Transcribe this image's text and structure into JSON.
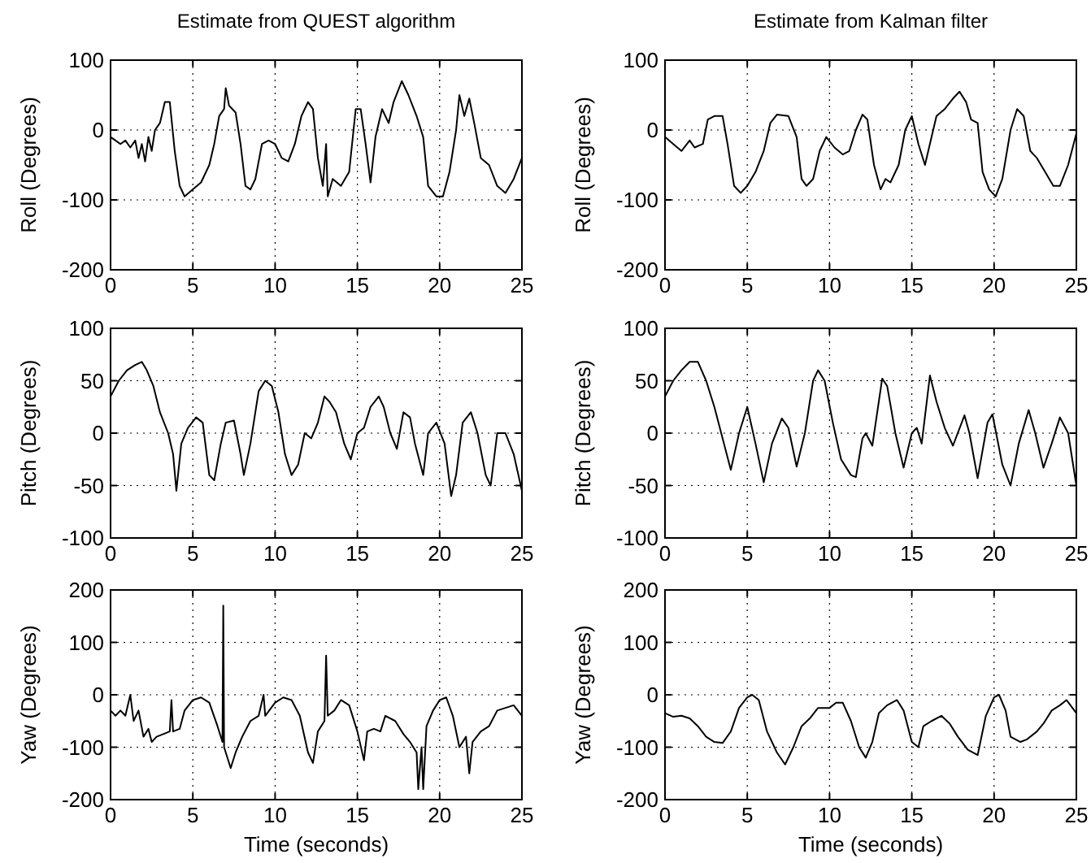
{
  "chart_data": [
    {
      "type": "line",
      "title": "Estimate from QUEST algorithm",
      "ylabel": "Roll (Degrees)",
      "color": "#000000",
      "grid": true,
      "xlim": [
        0,
        25
      ],
      "xticks": [
        0,
        5,
        10,
        15,
        20,
        25
      ],
      "ylim": [
        -200,
        100
      ],
      "yticks": [
        -200,
        -100,
        0,
        100
      ],
      "x": [
        0,
        0.3,
        0.6,
        0.9,
        1.2,
        1.5,
        1.7,
        1.9,
        2.1,
        2.3,
        2.5,
        2.7,
        3.0,
        3.3,
        3.6,
        3.9,
        4.2,
        4.5,
        5,
        5.5,
        6,
        6.3,
        6.6,
        6.9,
        7,
        7.2,
        7.6,
        7.9,
        8.2,
        8.5,
        8.8,
        9.2,
        9.6,
        10,
        10.4,
        10.8,
        11.2,
        11.6,
        12,
        12.3,
        12.6,
        12.9,
        13.1,
        13.2,
        13.5,
        14,
        14.5,
        14.9,
        15.2,
        15.5,
        15.8,
        16.1,
        16.5,
        16.9,
        17.2,
        17.7,
        18.1,
        18.6,
        19,
        19.3,
        19.8,
        20.2,
        20.6,
        21,
        21.2,
        21.5,
        21.8,
        22.1,
        22.5,
        23,
        23.5,
        24,
        24.5,
        25
      ],
      "values": [
        -10,
        -15,
        -20,
        -15,
        -25,
        -15,
        -40,
        -20,
        -45,
        -10,
        -30,
        0,
        10,
        40,
        40,
        -30,
        -80,
        -95,
        -85,
        -75,
        -50,
        -20,
        20,
        30,
        60,
        35,
        25,
        -20,
        -80,
        -85,
        -70,
        -20,
        -15,
        -20,
        -40,
        -45,
        -20,
        20,
        40,
        30,
        -40,
        -80,
        -20,
        -95,
        -70,
        -80,
        -60,
        30,
        30,
        -20,
        -75,
        -10,
        30,
        10,
        40,
        70,
        50,
        20,
        -10,
        -80,
        -95,
        -95,
        -60,
        0,
        50,
        20,
        45,
        10,
        -40,
        -50,
        -80,
        -90,
        -70,
        -40
      ]
    },
    {
      "type": "line",
      "title": "Estimate from Kalman filter",
      "ylabel": "Roll (Degrees)",
      "color": "#000000",
      "grid": true,
      "xlim": [
        0,
        25
      ],
      "xticks": [
        0,
        5,
        10,
        15,
        20,
        25
      ],
      "ylim": [
        -200,
        100
      ],
      "yticks": [
        -200,
        -100,
        0,
        100
      ],
      "x": [
        0,
        0.5,
        1,
        1.5,
        1.8,
        2.3,
        2.6,
        3,
        3.5,
        3.8,
        4.2,
        4.6,
        5,
        5.5,
        6,
        6.4,
        6.8,
        7.5,
        8,
        8.3,
        8.6,
        9,
        9.4,
        9.8,
        10.3,
        10.8,
        11.2,
        11.6,
        12,
        12.3,
        12.7,
        13.1,
        13.4,
        13.7,
        14.2,
        14.6,
        15,
        15.4,
        15.8,
        16.2,
        16.5,
        17,
        17.5,
        17.9,
        18.3,
        18.6,
        19,
        19.3,
        19.7,
        20.1,
        20.5,
        21,
        21.4,
        21.8,
        22.2,
        22.6,
        23.1,
        23.6,
        24,
        24.5,
        25
      ],
      "values": [
        -10,
        -20,
        -30,
        -15,
        -25,
        -20,
        15,
        20,
        20,
        -20,
        -80,
        -90,
        -80,
        -60,
        -30,
        10,
        22,
        20,
        -10,
        -70,
        -80,
        -70,
        -30,
        -10,
        -25,
        -35,
        -30,
        0,
        22,
        15,
        -50,
        -85,
        -70,
        -75,
        -50,
        0,
        20,
        -20,
        -50,
        -10,
        20,
        30,
        45,
        55,
        40,
        15,
        10,
        -60,
        -85,
        -95,
        -70,
        0,
        30,
        20,
        -30,
        -40,
        -60,
        -80,
        -80,
        -50,
        -5
      ]
    },
    {
      "type": "line",
      "ylabel": "Pitch (Degrees)",
      "color": "#000000",
      "grid": true,
      "xlim": [
        0,
        25
      ],
      "xticks": [
        0,
        5,
        10,
        15,
        20,
        25
      ],
      "ylim": [
        -100,
        100
      ],
      "yticks": [
        -100,
        -50,
        0,
        50,
        100
      ],
      "x": [
        0,
        0.5,
        1,
        1.5,
        1.9,
        2.2,
        2.6,
        3,
        3.5,
        3.8,
        4,
        4.3,
        4.7,
        5.2,
        5.6,
        6,
        6.3,
        6.7,
        7,
        7.5,
        7.9,
        8.1,
        8.5,
        9,
        9.4,
        9.8,
        10.2,
        10.6,
        11,
        11.4,
        11.8,
        12.2,
        12.6,
        13,
        13.3,
        13.7,
        14.2,
        14.6,
        15,
        15.4,
        15.8,
        16.3,
        16.6,
        17,
        17.4,
        17.8,
        18.2,
        18.5,
        19,
        19.3,
        19.8,
        20.3,
        20.7,
        21,
        21.4,
        21.9,
        22.3,
        22.8,
        23.1,
        23.5,
        24,
        24.5,
        25
      ],
      "values": [
        35,
        50,
        60,
        65,
        68,
        60,
        45,
        20,
        0,
        -20,
        -55,
        -10,
        5,
        15,
        10,
        -40,
        -45,
        -10,
        10,
        12,
        -20,
        -40,
        -10,
        40,
        50,
        45,
        20,
        -20,
        -40,
        -30,
        0,
        -5,
        10,
        35,
        30,
        20,
        -10,
        -25,
        0,
        5,
        25,
        35,
        25,
        0,
        -15,
        20,
        15,
        -10,
        -40,
        0,
        10,
        -10,
        -60,
        -40,
        10,
        20,
        0,
        -40,
        -50,
        0,
        0,
        -20,
        -55
      ]
    },
    {
      "type": "line",
      "ylabel": "Pitch (Degrees)",
      "color": "#000000",
      "grid": true,
      "xlim": [
        0,
        25
      ],
      "xticks": [
        0,
        5,
        10,
        15,
        20,
        25
      ],
      "ylim": [
        -100,
        100
      ],
      "yticks": [
        -100,
        -50,
        0,
        50,
        100
      ],
      "x": [
        0,
        0.5,
        1,
        1.5,
        2,
        2.5,
        3,
        3.5,
        4,
        4.5,
        5,
        5.5,
        6,
        6.5,
        7.1,
        7.5,
        8,
        8.5,
        9,
        9.3,
        9.7,
        10.2,
        10.7,
        11.3,
        11.6,
        12,
        12.2,
        12.6,
        13.2,
        13.5,
        14,
        14.5,
        15,
        15.3,
        15.6,
        16.1,
        16.5,
        17,
        17.5,
        18.2,
        18.5,
        19,
        19.6,
        19.9,
        20.5,
        21,
        21.5,
        22.1,
        22.5,
        23,
        23.5,
        24,
        24.5,
        25
      ],
      "values": [
        35,
        50,
        60,
        68,
        68,
        50,
        25,
        -5,
        -35,
        0,
        25,
        -10,
        -47,
        -10,
        14,
        5,
        -32,
        0,
        50,
        60,
        50,
        10,
        -25,
        -40,
        -42,
        -5,
        0,
        -12,
        52,
        45,
        0,
        -33,
        0,
        5,
        -10,
        55,
        30,
        5,
        -12,
        17,
        0,
        -43,
        10,
        18,
        -30,
        -50,
        -10,
        22,
        0,
        -33,
        -10,
        15,
        0,
        -50
      ]
    },
    {
      "type": "line",
      "ylabel": "Yaw (Degrees)",
      "xlabel": "Time (seconds)",
      "color": "#000000",
      "grid": true,
      "xlim": [
        0,
        25
      ],
      "xticks": [
        0,
        5,
        10,
        15,
        20,
        25
      ],
      "ylim": [
        -200,
        200
      ],
      "yticks": [
        -200,
        -100,
        0,
        100,
        200
      ],
      "x": [
        0,
        0.3,
        0.6,
        0.9,
        1.2,
        1.4,
        1.7,
        2,
        2.3,
        2.5,
        2.8,
        3.2,
        3.6,
        3.7,
        3.8,
        4.2,
        4.5,
        5,
        5.5,
        6,
        6.5,
        6.8,
        6.85,
        6.9,
        7.3,
        7.6,
        8,
        8.5,
        9,
        9.3,
        9.4,
        10,
        10.5,
        11,
        11.5,
        12,
        12.3,
        12.6,
        13,
        13.1,
        13.2,
        13.6,
        14,
        14.5,
        15,
        15.4,
        15.6,
        16,
        16.4,
        16.7,
        17.3,
        17.8,
        18.2,
        18.6,
        18.7,
        18.9,
        19,
        19.2,
        19.6,
        20,
        20.4,
        20.8,
        21.2,
        21.6,
        21.8,
        22,
        22.5,
        23,
        23.5,
        24,
        24.5,
        25
      ],
      "values": [
        -30,
        -40,
        -30,
        -40,
        0,
        -50,
        -30,
        -80,
        -65,
        -90,
        -80,
        -75,
        -70,
        -10,
        -70,
        -65,
        -30,
        -10,
        -5,
        -15,
        -60,
        -90,
        170,
        -100,
        -140,
        -110,
        -80,
        -50,
        -40,
        0,
        -40,
        -15,
        -5,
        -10,
        -40,
        -110,
        -130,
        -70,
        -50,
        75,
        -40,
        -30,
        -10,
        -20,
        -70,
        -125,
        -70,
        -65,
        -70,
        -40,
        -50,
        -75,
        -90,
        -110,
        -180,
        -100,
        -180,
        -60,
        -30,
        -10,
        -5,
        -40,
        -100,
        -80,
        -150,
        -90,
        -70,
        -60,
        -30,
        -25,
        -20,
        -40
      ]
    },
    {
      "type": "line",
      "ylabel": "Yaw (Degrees)",
      "xlabel": "Time (seconds)",
      "color": "#000000",
      "grid": true,
      "xlim": [
        0,
        25
      ],
      "xticks": [
        0,
        5,
        10,
        15,
        20,
        25
      ],
      "ylim": [
        -200,
        200
      ],
      "yticks": [
        -200,
        -100,
        0,
        100,
        200
      ],
      "x": [
        0,
        0.5,
        1,
        1.5,
        2,
        2.5,
        3,
        3.5,
        4,
        4.5,
        5,
        5.3,
        5.7,
        6.2,
        6.8,
        7.3,
        7.8,
        8.3,
        8.8,
        9.3,
        10,
        10.4,
        10.8,
        11.3,
        11.8,
        12.2,
        12.6,
        13,
        13.5,
        14.1,
        14.5,
        15,
        15.4,
        15.7,
        16.2,
        16.8,
        17.3,
        17.8,
        18.4,
        19,
        19.5,
        20,
        20.3,
        20.7,
        21,
        21.6,
        22,
        22.6,
        23,
        23.5,
        24,
        24.4,
        25
      ],
      "values": [
        -35,
        -42,
        -40,
        -45,
        -60,
        -80,
        -90,
        -92,
        -70,
        -25,
        -5,
        0,
        -10,
        -70,
        -110,
        -133,
        -100,
        -60,
        -45,
        -25,
        -25,
        -15,
        -15,
        -50,
        -100,
        -120,
        -90,
        -35,
        -20,
        -10,
        -30,
        -90,
        -100,
        -60,
        -50,
        -40,
        -55,
        -80,
        -105,
        -115,
        -40,
        -5,
        0,
        -30,
        -80,
        -90,
        -85,
        -70,
        -55,
        -30,
        -20,
        -10,
        -35
      ]
    }
  ]
}
